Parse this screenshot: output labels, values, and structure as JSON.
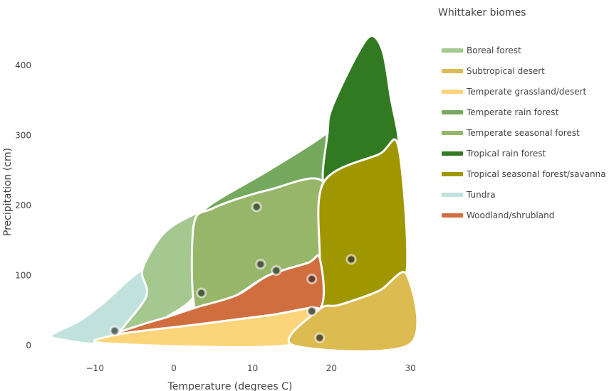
{
  "chart_data": {
    "type": "area",
    "xlabel": "Temperature (degrees C)",
    "ylabel": "Precipitation (cm)",
    "x_ticks": [
      -10,
      0,
      10,
      20,
      30
    ],
    "y_ticks": [
      0,
      100,
      200,
      300,
      400
    ],
    "xlim": [
      -17,
      31
    ],
    "ylim": [
      -5,
      450
    ],
    "grid": false,
    "legend": {
      "title": "Whittaker biomes",
      "placement": "right",
      "entries": [
        {
          "label": "Boreal forest",
          "color": "#a5c790"
        },
        {
          "label": "Subtropical desert",
          "color": "#dcbb50"
        },
        {
          "label": "Temperate grassland/desert",
          "color": "#fcd57a"
        },
        {
          "label": "Temperate rain forest",
          "color": "#75a95e"
        },
        {
          "label": "Temperate seasonal forest",
          "color": "#97b669"
        },
        {
          "label": "Tropical rain forest",
          "color": "#317a22"
        },
        {
          "label": "Tropical seasonal forest/savanna",
          "color": "#a09700"
        },
        {
          "label": "Tundra",
          "color": "#c1e1dd"
        },
        {
          "label": "Woodland/shrubland",
          "color": "#d16e3f"
        }
      ]
    },
    "regions": [
      {
        "name": "Tundra",
        "color": "#c1e1dd",
        "points": [
          [
            -15.5,
            15
          ],
          [
            -14,
            8
          ],
          [
            -10,
            3
          ],
          [
            -7,
            16
          ],
          [
            -3.5,
            70
          ],
          [
            -4,
            107
          ],
          [
            -9,
            60
          ],
          [
            -12,
            35
          ],
          [
            -15.5,
            15
          ]
        ]
      },
      {
        "name": "Boreal forest",
        "color": "#a5c790",
        "points": [
          [
            -4,
            107
          ],
          [
            -2,
            150
          ],
          [
            0,
            172
          ],
          [
            3,
            190
          ],
          [
            4.5,
            200
          ],
          [
            2.5,
            170
          ],
          [
            3,
            80
          ],
          [
            -1,
            40
          ],
          [
            -4,
            30
          ],
          [
            -7,
            16
          ],
          [
            -3.5,
            70
          ],
          [
            -4,
            107
          ]
        ]
      },
      {
        "name": "Temperate rain forest",
        "color": "#75a95e",
        "points": [
          [
            4.5,
            200
          ],
          [
            12,
            250
          ],
          [
            19,
            300
          ],
          [
            22,
            334
          ],
          [
            19.5,
            303
          ],
          [
            19,
            233
          ],
          [
            12,
            222
          ],
          [
            5,
            196
          ],
          [
            2.5,
            170
          ],
          [
            4.5,
            200
          ]
        ]
      },
      {
        "name": "Temperate seasonal forest",
        "color": "#97b669",
        "points": [
          [
            2.5,
            170
          ],
          [
            5,
            196
          ],
          [
            12,
            222
          ],
          [
            19,
            233
          ],
          [
            18.5,
            125
          ],
          [
            17,
            118
          ],
          [
            12,
            100
          ],
          [
            8,
            72
          ],
          [
            3,
            40
          ],
          [
            2.5,
            170
          ]
        ]
      },
      {
        "name": "Tropical rain forest",
        "color": "#317a22",
        "points": [
          [
            19,
            233
          ],
          [
            22,
            250
          ],
          [
            26,
            273
          ],
          [
            28.5,
            283
          ],
          [
            27.5,
            355
          ],
          [
            26.5,
            420
          ],
          [
            25,
            442
          ],
          [
            23,
            410
          ],
          [
            20,
            338
          ],
          [
            19.5,
            303
          ],
          [
            19,
            233
          ]
        ]
      },
      {
        "name": "Tropical seasonal forest/savanna",
        "color": "#a09700",
        "points": [
          [
            19,
            233
          ],
          [
            26,
            273
          ],
          [
            28.5,
            283
          ],
          [
            29.5,
            102
          ],
          [
            26,
            78
          ],
          [
            21,
            58
          ],
          [
            18.5,
            52
          ],
          [
            18.5,
            125
          ],
          [
            19,
            233
          ]
        ]
      },
      {
        "name": "Woodland/shrubland",
        "color": "#d16e3f",
        "points": [
          [
            -7,
            16
          ],
          [
            -4,
            30
          ],
          [
            -1,
            40
          ],
          [
            3,
            55
          ],
          [
            8,
            72
          ],
          [
            12,
            100
          ],
          [
            17,
            118
          ],
          [
            18.5,
            125
          ],
          [
            18.5,
            52
          ],
          [
            12,
            43
          ],
          [
            3,
            30
          ],
          [
            -7,
            16
          ]
        ]
      },
      {
        "name": "Temperate grassland/desert",
        "color": "#fcd57a",
        "points": [
          [
            -8.5,
            3
          ],
          [
            -7,
            16
          ],
          [
            3,
            30
          ],
          [
            12,
            43
          ],
          [
            18.5,
            52
          ],
          [
            15,
            1
          ],
          [
            -8.5,
            3
          ]
        ]
      },
      {
        "name": "Subtropical desert",
        "color": "#dcbb50",
        "points": [
          [
            15,
            1
          ],
          [
            18.5,
            52
          ],
          [
            21,
            58
          ],
          [
            26,
            78
          ],
          [
            29.5,
            102
          ],
          [
            29.8,
            1
          ],
          [
            15,
            1
          ]
        ]
      }
    ],
    "points": [
      {
        "x": -7.5,
        "y": 21,
        "fill": "#5e6b6a"
      },
      {
        "x": 3.5,
        "y": 75,
        "fill": "#4d5b3a"
      },
      {
        "x": 10.5,
        "y": 198,
        "fill": "#4d5b3a"
      },
      {
        "x": 11,
        "y": 116,
        "fill": "#4d5b3a"
      },
      {
        "x": 13,
        "y": 107,
        "fill": "#4d5b3a"
      },
      {
        "x": 17.5,
        "y": 95,
        "fill": "#6b3a2a"
      },
      {
        "x": 17.5,
        "y": 49,
        "fill": "#5e5a4a"
      },
      {
        "x": 22.5,
        "y": 123,
        "fill": "#4f4a14"
      },
      {
        "x": 18.5,
        "y": 11,
        "fill": "#5e4f24"
      }
    ]
  }
}
